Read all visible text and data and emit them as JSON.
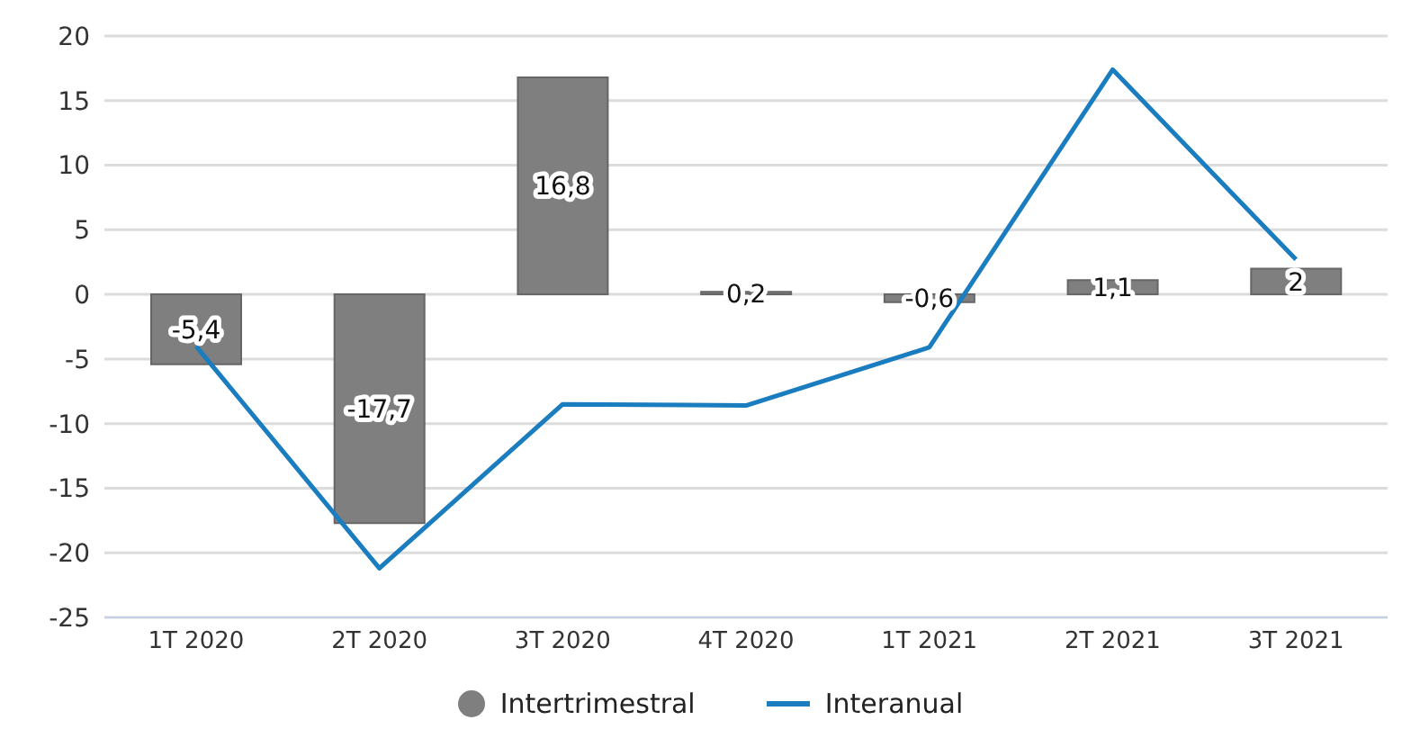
{
  "chart_data": {
    "type": "bar",
    "categories": [
      "1T 2020",
      "2T 2020",
      "3T 2020",
      "4T 2020",
      "1T 2021",
      "2T 2021",
      "3T 2021"
    ],
    "series": [
      {
        "name": "Intertrimestral",
        "color": "#7f7f7f",
        "values": [
          -5.4,
          -17.7,
          16.8,
          0.2,
          -0.6,
          1.1,
          2
        ],
        "value_labels": [
          "-5,4",
          "-17,7",
          "16,8",
          "0,2",
          "-0,6",
          "1,1",
          "2"
        ]
      },
      {
        "name": "Interanual",
        "type": "line",
        "color": "#1a7dbf",
        "values": [
          -4.0,
          -21.2,
          -8.5,
          -8.6,
          -4.1,
          17.4,
          2.7
        ]
      }
    ],
    "ylim": [
      -25,
      20
    ],
    "yticks": [
      -25,
      -20,
      -15,
      -10,
      -5,
      0,
      5,
      10,
      15,
      20
    ],
    "grid": "y",
    "legend": "bottom",
    "marker": "none"
  }
}
